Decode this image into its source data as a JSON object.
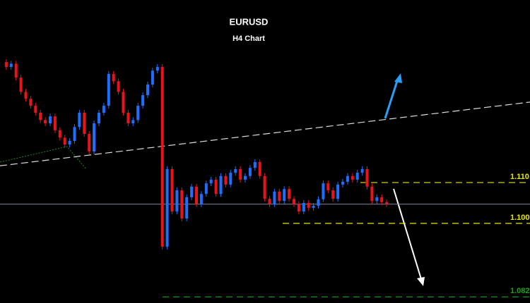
{
  "chart_data": {
    "type": "candlestick",
    "title": "EURUSD",
    "subtitle": "H4 Chart",
    "ylim": [
      1.0805,
      1.1547
    ],
    "up_color": "#1e6fff",
    "down_color": "#e8141c",
    "closes": [
      1.1395,
      1.1383,
      1.1391,
      1.1357,
      1.1322,
      1.1305,
      1.1288,
      1.1271,
      1.1253,
      1.1245,
      1.1262,
      1.1228,
      1.121,
      1.1193,
      1.1202,
      1.1236,
      1.1271,
      1.1219,
      1.1176,
      1.1245,
      1.1271,
      1.1288,
      1.1366,
      1.1348,
      1.1322,
      1.1271,
      1.1245,
      1.1253,
      1.1288,
      1.1314,
      1.134,
      1.1374,
      1.1383,
      1.0943,
      1.1133,
      1.1029,
      1.1081,
      1.1012,
      1.1064,
      1.109,
      1.1047,
      1.1072,
      1.1098,
      1.1107,
      1.1072,
      1.1116,
      1.1095,
      1.1124,
      1.1133,
      1.1107,
      1.1116,
      1.1136,
      1.115,
      1.1116,
      1.106,
      1.1047,
      1.1078,
      1.1055,
      1.1084,
      1.106,
      1.1047,
      1.1029,
      1.105,
      1.1038,
      1.1043,
      1.1059,
      1.1098,
      1.1081,
      1.106,
      1.1095,
      1.1102,
      1.1116,
      1.1107,
      1.1124,
      1.1133,
      1.109,
      1.1055,
      1.1064,
      1.1052,
      1.1047
    ],
    "price_line": 1.1047,
    "trendline": [
      1.1141,
      1.1297
    ],
    "levels": [
      {
        "value": 1.11,
        "label": "1.110",
        "color": "#e6e600"
      },
      {
        "value": 1.1,
        "label": "1.100",
        "color": "#e6e600"
      },
      {
        "value": 1.082,
        "label": "1.082",
        "color": "#1ea01e"
      }
    ]
  }
}
